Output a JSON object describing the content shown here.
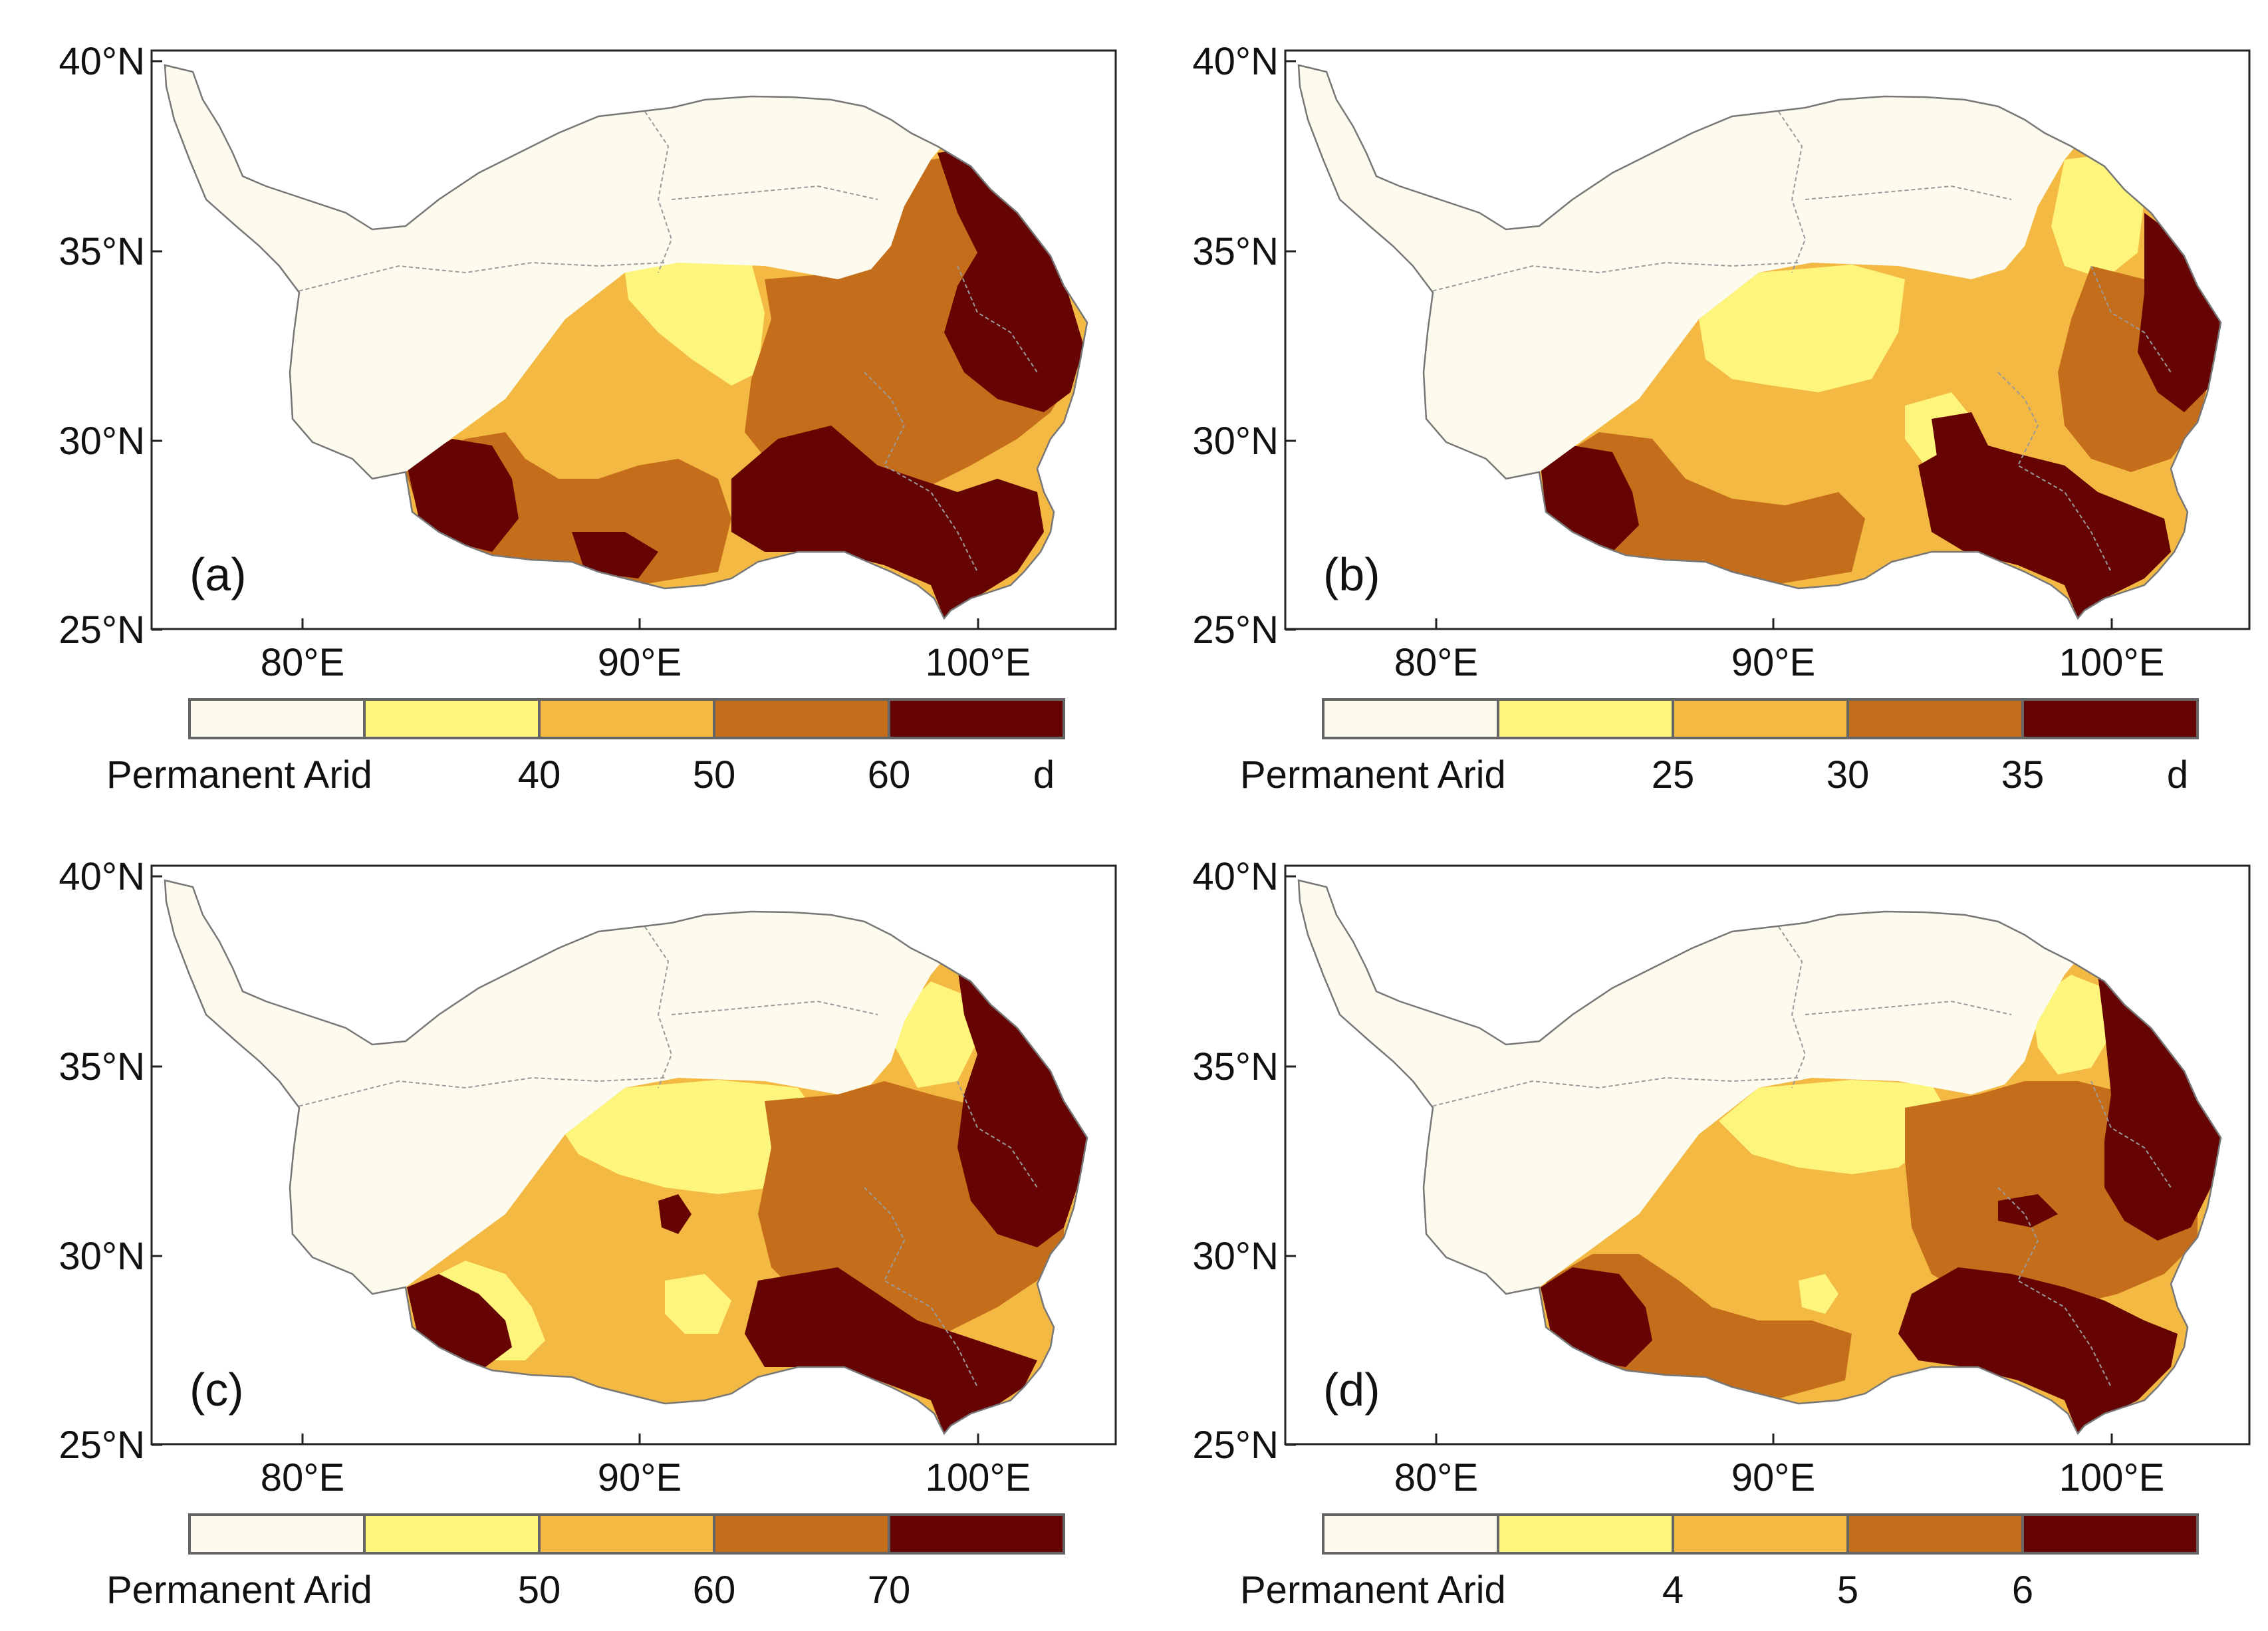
{
  "colors": {
    "arid": "#fdfbee",
    "c1": "#fef57c",
    "c2": "#f4b943",
    "c3": "#c46e1c",
    "c4": "#660404",
    "frame": "#222222",
    "legend_border": "#666666"
  },
  "axes": {
    "lat_ticks": [
      "40°N",
      "35°N",
      "30°N",
      "25°N"
    ],
    "lon_ticks": [
      "80°E",
      "90°E",
      "100°E"
    ]
  },
  "panels": [
    {
      "label": "(a)",
      "legend": [
        "Permanent Arid",
        "40",
        "50",
        "60",
        "d"
      ]
    },
    {
      "label": "(b)",
      "legend": [
        "Permanent Arid",
        "25",
        "30",
        "35",
        "d"
      ]
    },
    {
      "label": "(c)",
      "legend": [
        "Permanent Arid",
        "50",
        "60",
        "70",
        ""
      ]
    },
    {
      "label": "(d)",
      "legend": [
        "Permanent Arid",
        "4",
        "5",
        "6",
        ""
      ]
    }
  ]
}
